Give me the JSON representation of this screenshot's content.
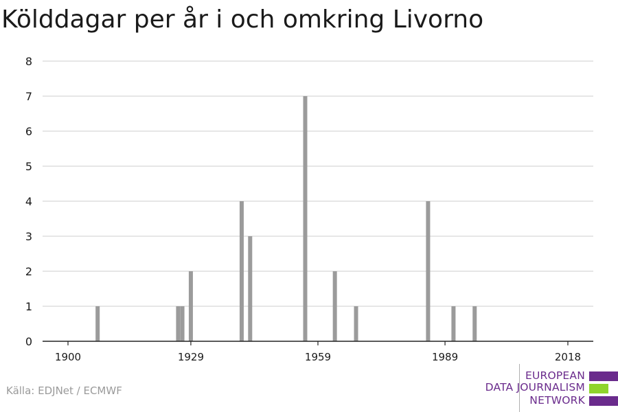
{
  "title": "Kölddagar per år i och omkring Livorno",
  "source": "Källa: EDJNet / ECMWF",
  "logo": {
    "line1": "EUROPEAN",
    "line2": "DATA JOURNALISM",
    "line3": "NETWORK",
    "colors": {
      "purple": "#6a2b8c",
      "green": "#8fd42c"
    }
  },
  "colors": {
    "bar": "#9b9b9b",
    "grid": "#dddddd",
    "axis": "#222222",
    "text": "#1a1a1a"
  },
  "chart_data": {
    "type": "bar",
    "title": "Kölddagar per år i och omkring Livorno",
    "xlabel": "",
    "ylabel": "",
    "xlim": [
      1894,
      2024
    ],
    "ylim": [
      0,
      8
    ],
    "x_ticks": [
      1900,
      1929,
      1959,
      1989,
      2018
    ],
    "y_ticks": [
      0,
      1,
      2,
      3,
      4,
      5,
      6,
      7,
      8
    ],
    "grid": true,
    "legend": "none",
    "x": [
      1907,
      1926,
      1927,
      1929,
      1941,
      1943,
      1956,
      1963,
      1968,
      1985,
      1991,
      1996
    ],
    "values": [
      1,
      1,
      1,
      2,
      4,
      3,
      7,
      2,
      1,
      4,
      1,
      1
    ]
  }
}
